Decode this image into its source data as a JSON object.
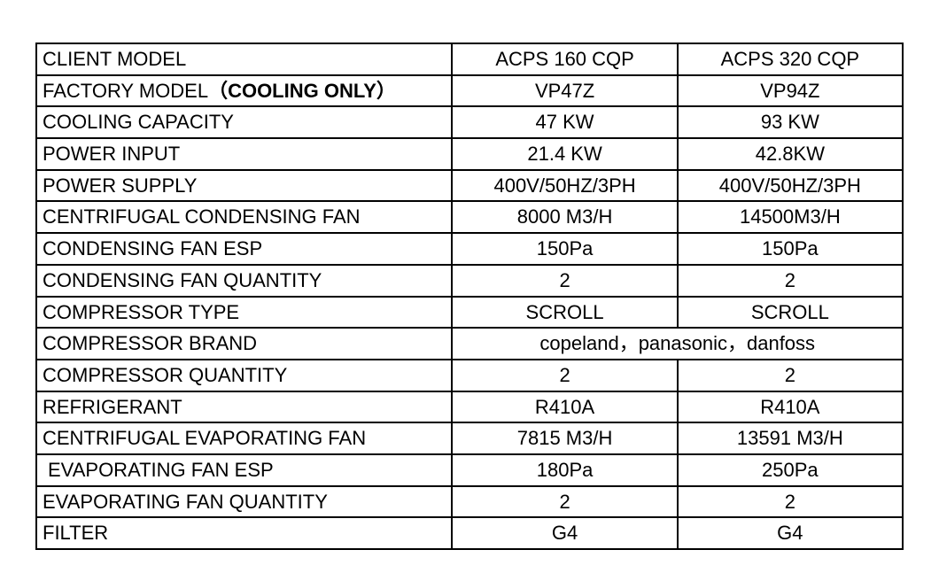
{
  "table": {
    "border_color": "#000000",
    "background_color": "#ffffff",
    "font_size_pt": 17,
    "col_widths_pct": [
      48,
      26,
      26
    ],
    "rows": [
      {
        "label_plain": "CLIENT MODEL",
        "bold_span": "",
        "v1": "ACPS 160 CQP",
        "v2": "ACPS 320 CQP",
        "merged": false
      },
      {
        "label_plain": "FACTORY MODEL",
        "bold_span": "（COOLING ONLY）",
        "v1": "VP47Z",
        "v2": "VP94Z",
        "merged": false
      },
      {
        "label_plain": "COOLING CAPACITY",
        "bold_span": "",
        "v1": "47 KW",
        "v2": "93 KW",
        "merged": false
      },
      {
        "label_plain": "POWER INPUT",
        "bold_span": "",
        "v1": "21.4 KW",
        "v2": "42.8KW",
        "merged": false
      },
      {
        "label_plain": "POWER SUPPLY",
        "bold_span": "",
        "v1": "400V/50HZ/3PH",
        "v2": "400V/50HZ/3PH",
        "merged": false
      },
      {
        "label_plain": "CENTRIFUGAL CONDENSING FAN",
        "bold_span": "",
        "v1": "8000 M3/H",
        "v2": "14500M3/H",
        "merged": false
      },
      {
        "label_plain": "CONDENSING FAN ESP",
        "bold_span": "",
        "v1": "150Pa",
        "v2": "150Pa",
        "merged": false
      },
      {
        "label_plain": "CONDENSING FAN QUANTITY",
        "bold_span": "",
        "v1": "2",
        "v2": "2",
        "merged": false
      },
      {
        "label_plain": "COMPRESSOR TYPE",
        "bold_span": "",
        "v1": "SCROLL",
        "v2": "SCROLL",
        "merged": false
      },
      {
        "label_plain": "COMPRESSOR BRAND",
        "bold_span": "",
        "vmerged": "copeland，panasonic，danfoss",
        "merged": true
      },
      {
        "label_plain": "COMPRESSOR QUANTITY",
        "bold_span": "",
        "v1": "2",
        "v2": "2",
        "merged": false
      },
      {
        "label_plain": "REFRIGERANT",
        "bold_span": "",
        "v1": "R410A",
        "v2": "R410A",
        "merged": false
      },
      {
        "label_plain": "CENTRIFUGAL EVAPORATING FAN",
        "bold_span": "",
        "v1": "7815 M3/H",
        "v2": "13591 M3/H",
        "merged": false
      },
      {
        "label_plain": "EVAPORATING FAN ESP",
        "bold_span": "",
        "v1": "180Pa",
        "v2": "250Pa",
        "merged": false,
        "indent": true
      },
      {
        "label_plain": "EVAPORATING FAN QUANTITY",
        "bold_span": "",
        "v1": "2",
        "v2": "2",
        "merged": false
      },
      {
        "label_plain": "FILTER",
        "bold_span": "",
        "v1": "G4",
        "v2": "G4",
        "merged": false
      }
    ]
  }
}
